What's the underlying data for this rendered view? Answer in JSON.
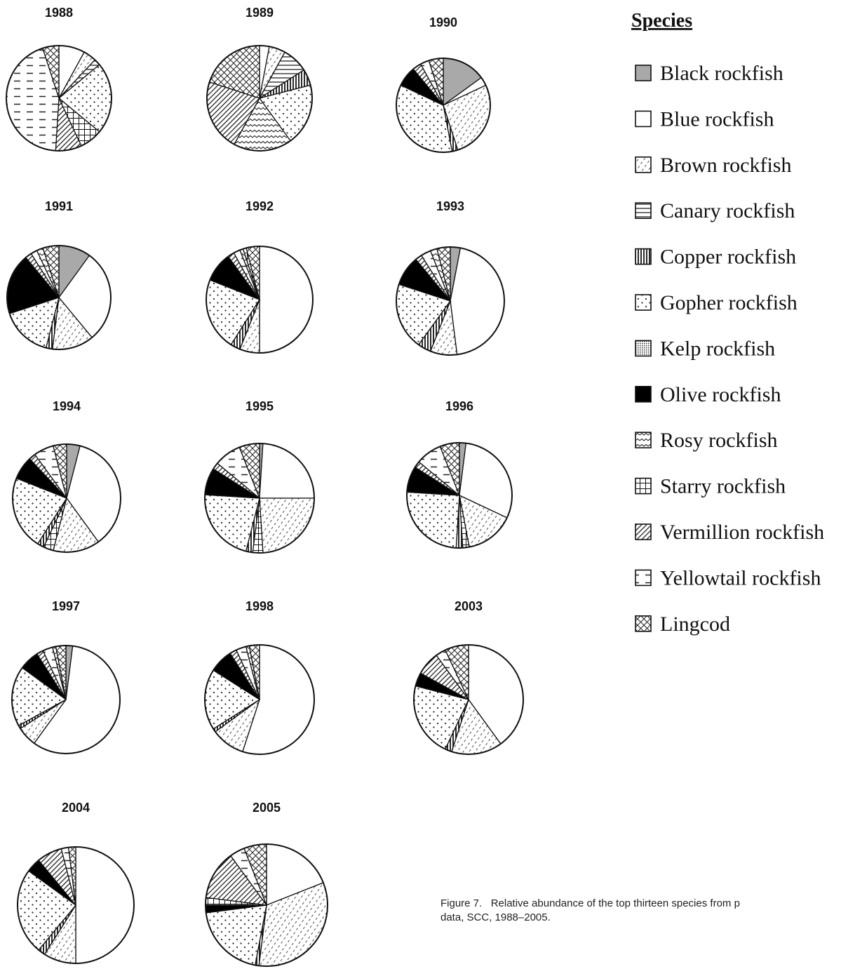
{
  "legend": {
    "title": "Species",
    "items": [
      {
        "key": "black",
        "label": "Black rockfish"
      },
      {
        "key": "blue",
        "label": "Blue rockfish"
      },
      {
        "key": "brown",
        "label": "Brown rockfish"
      },
      {
        "key": "canary",
        "label": "Canary rockfish"
      },
      {
        "key": "copper",
        "label": "Copper rockfish"
      },
      {
        "key": "gopher",
        "label": "Gopher rockfish"
      },
      {
        "key": "kelp",
        "label": "Kelp rockfish"
      },
      {
        "key": "olive",
        "label": "Olive rockfish"
      },
      {
        "key": "rosy",
        "label": "Rosy rockfish"
      },
      {
        "key": "starry",
        "label": "Starry rockfish"
      },
      {
        "key": "vermillion",
        "label": "Vermillion rockfish"
      },
      {
        "key": "yellowtail",
        "label": "Yellowtail rockfish"
      },
      {
        "key": "lingcod",
        "label": "Lingcod"
      }
    ]
  },
  "caption": {
    "line1": "Figure 7.   Relative abundance of the top thirteen species from p",
    "line2": "data, SCC, 1988–2005."
  },
  "chart_data": {
    "type": "pie",
    "title": "",
    "note": "",
    "species": [
      "black",
      "blue",
      "brown",
      "canary",
      "copper",
      "gopher",
      "kelp",
      "olive",
      "rosy",
      "starry",
      "vermillion",
      "yellowtail",
      "lingcod"
    ],
    "pies": [
      {
        "label": "1988",
        "slices": [
          [
            "blue",
            8
          ],
          [
            "brown",
            4
          ],
          [
            "canary",
            2
          ],
          [
            "gopher",
            22
          ],
          [
            "starry",
            7
          ],
          [
            "vermillion",
            8
          ],
          [
            "yellowtail",
            44
          ],
          [
            "lingcod",
            5
          ]
        ]
      },
      {
        "label": "1989",
        "slices": [
          [
            "blue",
            3
          ],
          [
            "brown",
            5
          ],
          [
            "canary",
            8
          ],
          [
            "copper",
            5
          ],
          [
            "gopher",
            19
          ],
          [
            "rosy",
            18
          ],
          [
            "vermillion",
            22
          ],
          [
            "lingcod",
            20
          ]
        ]
      },
      {
        "label": "1990",
        "slices": [
          [
            "black",
            15
          ],
          [
            "blue",
            3
          ],
          [
            "brown",
            27
          ],
          [
            "copper",
            2
          ],
          [
            "gopher",
            35
          ],
          [
            "olive",
            7
          ],
          [
            "vermillion",
            3
          ],
          [
            "yellowtail",
            3
          ],
          [
            "lingcod",
            5
          ]
        ]
      },
      {
        "label": "1991",
        "slices": [
          [
            "black",
            10
          ],
          [
            "blue",
            29
          ],
          [
            "brown",
            13
          ],
          [
            "copper",
            2
          ],
          [
            "gopher",
            16
          ],
          [
            "olive",
            19
          ],
          [
            "vermillion",
            2
          ],
          [
            "yellowtail",
            2
          ],
          [
            "rosy",
            2
          ],
          [
            "lingcod",
            5
          ]
        ]
      },
      {
        "label": "1992",
        "slices": [
          [
            "blue",
            50
          ],
          [
            "brown",
            6
          ],
          [
            "copper",
            3
          ],
          [
            "gopher",
            22
          ],
          [
            "olive",
            9
          ],
          [
            "vermillion",
            2
          ],
          [
            "yellowtail",
            2
          ],
          [
            "rosy",
            1
          ],
          [
            "starry",
            1
          ],
          [
            "lingcod",
            4
          ]
        ]
      },
      {
        "label": "1993",
        "slices": [
          [
            "black",
            3
          ],
          [
            "blue",
            45
          ],
          [
            "brown",
            8
          ],
          [
            "copper",
            4
          ],
          [
            "gopher",
            20
          ],
          [
            "olive",
            9
          ],
          [
            "vermillion",
            2
          ],
          [
            "yellowtail",
            3
          ],
          [
            "rosy",
            2
          ],
          [
            "lingcod",
            4
          ]
        ]
      },
      {
        "label": "1994",
        "slices": [
          [
            "black",
            4
          ],
          [
            "blue",
            36
          ],
          [
            "brown",
            14
          ],
          [
            "starry",
            3
          ],
          [
            "copper",
            2
          ],
          [
            "gopher",
            22
          ],
          [
            "olive",
            7
          ],
          [
            "vermillion",
            2
          ],
          [
            "yellowtail",
            6
          ],
          [
            "lingcod",
            4
          ]
        ]
      },
      {
        "label": "1995",
        "slices": [
          [
            "black",
            1
          ],
          [
            "blue",
            24
          ],
          [
            "brown",
            24
          ],
          [
            "starry",
            3
          ],
          [
            "copper",
            2
          ],
          [
            "gopher",
            22
          ],
          [
            "olive",
            8
          ],
          [
            "vermillion",
            2
          ],
          [
            "yellowtail",
            8
          ],
          [
            "lingcod",
            6
          ]
        ]
      },
      {
        "label": "1996",
        "slices": [
          [
            "black",
            2
          ],
          [
            "blue",
            30
          ],
          [
            "brown",
            15
          ],
          [
            "starry",
            2
          ],
          [
            "copper",
            2
          ],
          [
            "gopher",
            25
          ],
          [
            "olive",
            8
          ],
          [
            "vermillion",
            2
          ],
          [
            "yellowtail",
            8
          ],
          [
            "lingcod",
            6
          ]
        ]
      },
      {
        "label": "1997",
        "slices": [
          [
            "black",
            2
          ],
          [
            "blue",
            58
          ],
          [
            "brown",
            6
          ],
          [
            "copper",
            1
          ],
          [
            "gopher",
            18
          ],
          [
            "olive",
            6
          ],
          [
            "vermillion",
            2
          ],
          [
            "yellowtail",
            3
          ],
          [
            "rosy",
            1
          ],
          [
            "lingcod",
            3
          ]
        ]
      },
      {
        "label": "1998",
        "slices": [
          [
            "blue",
            55
          ],
          [
            "brown",
            10
          ],
          [
            "copper",
            1
          ],
          [
            "gopher",
            18
          ],
          [
            "olive",
            7
          ],
          [
            "vermillion",
            2
          ],
          [
            "yellowtail",
            3
          ],
          [
            "rosy",
            1
          ],
          [
            "lingcod",
            3
          ]
        ]
      },
      {
        "label": "2003",
        "slices": [
          [
            "blue",
            40
          ],
          [
            "brown",
            15
          ],
          [
            "copper",
            2
          ],
          [
            "gopher",
            22
          ],
          [
            "olive",
            4
          ],
          [
            "vermillion",
            7
          ],
          [
            "yellowtail",
            3
          ],
          [
            "lingcod",
            7
          ]
        ]
      },
      {
        "label": "2004",
        "slices": [
          [
            "blue",
            50
          ],
          [
            "brown",
            9
          ],
          [
            "copper",
            2
          ],
          [
            "gopher",
            24
          ],
          [
            "olive",
            4
          ],
          [
            "vermillion",
            7
          ],
          [
            "yellowtail",
            2
          ],
          [
            "lingcod",
            2
          ]
        ]
      },
      {
        "label": "2005",
        "slices": [
          [
            "blue",
            19
          ],
          [
            "brown",
            33
          ],
          [
            "copper",
            1
          ],
          [
            "gopher",
            20
          ],
          [
            "olive",
            2
          ],
          [
            "starry",
            2
          ],
          [
            "vermillion",
            13
          ],
          [
            "yellowtail",
            4
          ],
          [
            "lingcod",
            6
          ]
        ]
      }
    ]
  }
}
